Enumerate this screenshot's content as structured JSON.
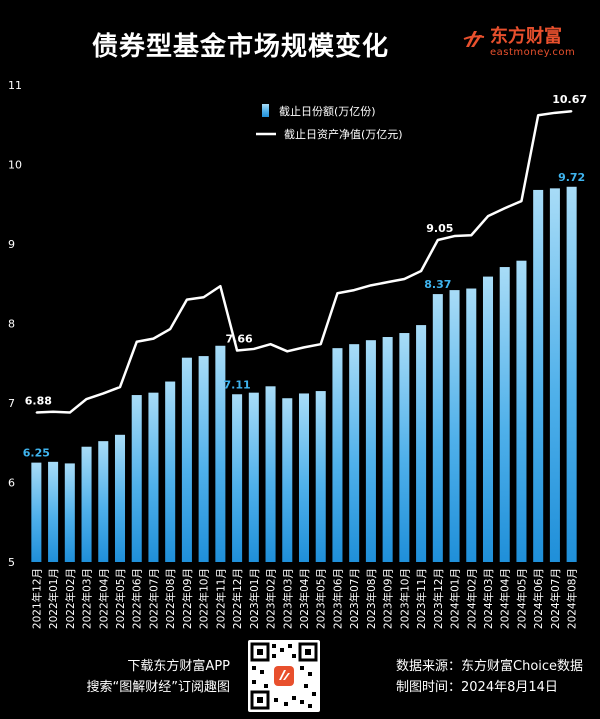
{
  "header": {
    "title": "债券型基金市场规模变化",
    "brand_cn": "东方财富",
    "brand_en": "eastmoney.com"
  },
  "footer": {
    "left_line1": "下载东方财富APP",
    "left_line2": "搜索“图解财经”订阅趣图",
    "right_line1": "数据来源：东方财富Choice数据",
    "right_line2": "制图时间：2024年8月14日"
  },
  "colors": {
    "background": "#000000",
    "bar": "#4fb0ea",
    "line": "#ffffff",
    "label_bar": "#3fb4ee",
    "brand": "#e8502d"
  },
  "chart_data": {
    "type": "bar",
    "categories": [
      "2021年12月",
      "2022年01月",
      "2022年02月",
      "2022年03月",
      "2022年04月",
      "2022年05月",
      "2022年06月",
      "2022年07月",
      "2022年08月",
      "2022年09月",
      "2022年10月",
      "2022年11月",
      "2022年12月",
      "2023年01月",
      "2023年02月",
      "2023年03月",
      "2023年04月",
      "2023年05月",
      "2023年06月",
      "2023年07月",
      "2023年08月",
      "2023年09月",
      "2023年10月",
      "2023年11月",
      "2023年12月",
      "2024年01月",
      "2024年02月",
      "2024年03月",
      "2024年04月",
      "2024年05月",
      "2024年06月",
      "2024年07月",
      "2024年08月"
    ],
    "series": [
      {
        "name": "截止日份额(万亿份)",
        "type": "bar",
        "values": [
          6.25,
          6.26,
          6.24,
          6.45,
          6.52,
          6.6,
          7.1,
          7.13,
          7.27,
          7.57,
          7.59,
          7.72,
          7.11,
          7.13,
          7.21,
          7.06,
          7.12,
          7.15,
          7.69,
          7.74,
          7.79,
          7.83,
          7.88,
          7.98,
          8.37,
          8.42,
          8.44,
          8.59,
          8.71,
          8.79,
          9.68,
          9.7,
          9.72
        ]
      },
      {
        "name": "截止日资产净值(万亿元)",
        "type": "line",
        "values": [
          6.88,
          6.89,
          6.88,
          7.05,
          7.12,
          7.2,
          7.77,
          7.81,
          7.93,
          8.3,
          8.33,
          8.47,
          7.66,
          7.68,
          7.74,
          7.65,
          7.7,
          7.74,
          8.38,
          8.42,
          8.48,
          8.52,
          8.56,
          8.66,
          9.05,
          9.1,
          9.11,
          9.35,
          9.45,
          9.54,
          10.62,
          10.65,
          10.67
        ]
      }
    ],
    "value_labels": {
      "bar": [
        {
          "index": 0,
          "text": "6.25"
        },
        {
          "index": 12,
          "text": "7.11"
        },
        {
          "index": 24,
          "text": "8.37"
        },
        {
          "index": 32,
          "text": "9.72"
        }
      ],
      "line": [
        {
          "index": 0,
          "text": "6.88"
        },
        {
          "index": 12,
          "text": "7.66"
        },
        {
          "index": 24,
          "text": "9.05"
        },
        {
          "index": 32,
          "text": "10.67"
        }
      ]
    },
    "yticks": [
      "5",
      "6",
      "7",
      "8",
      "9",
      "10",
      "11"
    ],
    "ylim": [
      5,
      11
    ],
    "grid": false,
    "legend_position": "top-center"
  }
}
